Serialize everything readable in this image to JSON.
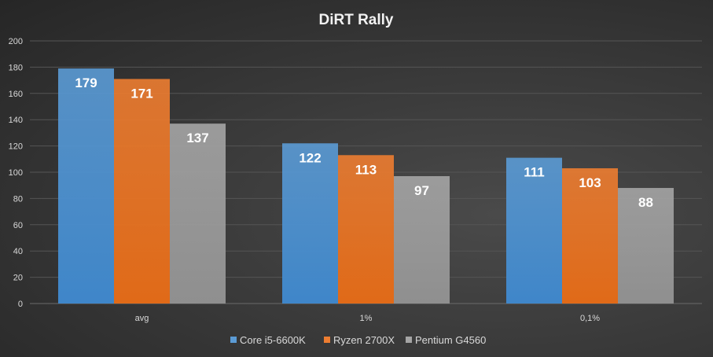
{
  "chart_data": {
    "type": "bar",
    "title": "DiRT  Rally",
    "categories": [
      "avg",
      "1%",
      "0,1%"
    ],
    "series": [
      {
        "name": "Core i5-6600K",
        "values": [
          179,
          122,
          111
        ],
        "color": "#5b9bd5"
      },
      {
        "name": "Ryzen 2700X",
        "values": [
          171,
          113,
          103
        ],
        "color": "#ed7d31"
      },
      {
        "name": "Pentium G4560",
        "values": [
          137,
          97,
          88
        ],
        "color": "#a5a5a5"
      }
    ],
    "ylim": [
      0,
      200
    ],
    "yticks": [
      0,
      20,
      40,
      60,
      80,
      100,
      120,
      140,
      160,
      180,
      200
    ],
    "grid": true,
    "legend": "bottom",
    "xlabel": "",
    "ylabel": ""
  }
}
